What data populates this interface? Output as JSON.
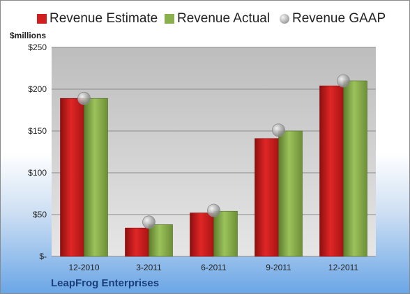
{
  "chart_data": {
    "type": "bar",
    "categories": [
      "12-2010",
      "3-2011",
      "6-2011",
      "9-2011",
      "12-2011"
    ],
    "series": [
      {
        "name": "Revenue Estimate",
        "values": [
          189,
          34,
          52,
          141,
          204
        ],
        "color": "#d11f1f"
      },
      {
        "name": "Revenue Actual",
        "values": [
          189,
          38,
          54,
          150,
          210
        ],
        "color": "#8ab04e"
      },
      {
        "name": "Revenue GAAP",
        "values": [
          189,
          41,
          55,
          151,
          210
        ],
        "color": "#a8a8a8",
        "marker": "circle"
      }
    ],
    "ylabel": "$millions",
    "ylim": [
      0,
      250
    ],
    "yticks": [
      0,
      50,
      100,
      150,
      200,
      250
    ],
    "yticklabels": [
      "$-",
      "$50",
      "$100",
      "$150",
      "$200",
      "$250"
    ],
    "legend_position": "top",
    "grid": true
  },
  "company": "LeapFrog Enterprises"
}
